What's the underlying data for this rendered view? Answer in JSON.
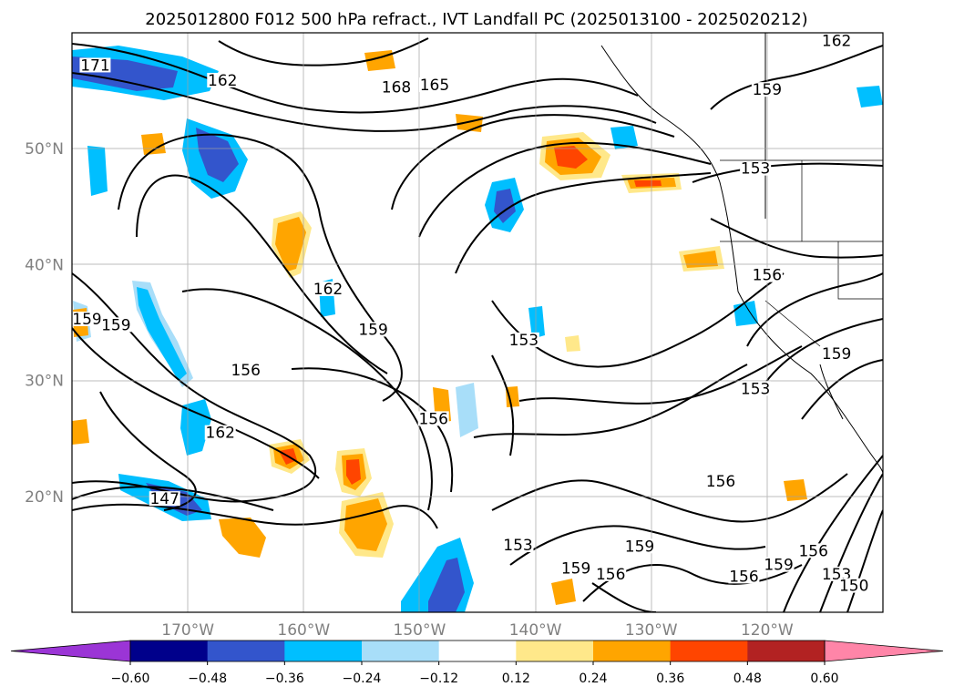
{
  "title": "2025012800 F012 500 hPa refract., IVT Landfall PC (2025013100 - 2025020212)",
  "map": {
    "lat_labels": [
      "50°N",
      "40°N",
      "30°N",
      "20°N"
    ],
    "lon_labels": [
      "170°W",
      "160°W",
      "150°W",
      "140°W",
      "130°W",
      "120°W"
    ],
    "lat_values": [
      50,
      40,
      30,
      20
    ],
    "lon_values": [
      -170,
      -160,
      -150,
      -140,
      -130,
      -120
    ],
    "extent": {
      "lon_min": -180,
      "lon_max": -110,
      "lat_min": 10,
      "lat_max": 60
    },
    "gridlines": true,
    "contour_labels": [
      {
        "text": "171",
        "lon": -178.0,
        "lat": 56.9
      },
      {
        "text": "162",
        "lon": -167.0,
        "lat": 55.6
      },
      {
        "text": "168",
        "lon": -152.0,
        "lat": 55.0
      },
      {
        "text": "165",
        "lon": -148.7,
        "lat": 55.2
      },
      {
        "text": "162",
        "lon": -114.0,
        "lat": 59.0
      },
      {
        "text": "159",
        "lon": -120.0,
        "lat": 54.8
      },
      {
        "text": "153",
        "lon": -121.0,
        "lat": 48.0
      },
      {
        "text": "156",
        "lon": -120.0,
        "lat": 38.8
      },
      {
        "text": "162",
        "lon": -157.9,
        "lat": 37.6
      },
      {
        "text": "159",
        "lon": -178.7,
        "lat": 35.0
      },
      {
        "text": "159",
        "lon": -176.2,
        "lat": 34.5
      },
      {
        "text": "159",
        "lon": -154.0,
        "lat": 34.1
      },
      {
        "text": "153",
        "lon": -141.0,
        "lat": 33.2
      },
      {
        "text": "156",
        "lon": -165.0,
        "lat": 30.6
      },
      {
        "text": "159",
        "lon": -114.0,
        "lat": 32.0
      },
      {
        "text": "153",
        "lon": -121.0,
        "lat": 29.0
      },
      {
        "text": "156",
        "lon": -148.8,
        "lat": 26.4
      },
      {
        "text": "162",
        "lon": -167.2,
        "lat": 25.2
      },
      {
        "text": "156",
        "lon": -124.0,
        "lat": 21.0
      },
      {
        "text": "147",
        "lon": -172.0,
        "lat": 19.5
      },
      {
        "text": "153",
        "lon": -141.5,
        "lat": 15.5
      },
      {
        "text": "159",
        "lon": -131.0,
        "lat": 15.4
      },
      {
        "text": "159",
        "lon": -136.5,
        "lat": 13.5
      },
      {
        "text": "156",
        "lon": -133.5,
        "lat": 13.0
      },
      {
        "text": "156",
        "lon": -122.0,
        "lat": 12.8
      },
      {
        "text": "159",
        "lon": -119.0,
        "lat": 13.8
      },
      {
        "text": "156",
        "lon": -116.0,
        "lat": 15.0
      },
      {
        "text": "153",
        "lon": -114.0,
        "lat": 13.0
      },
      {
        "text": "150",
        "lon": -112.5,
        "lat": 12.0
      }
    ]
  },
  "colorbar": {
    "ticks": [
      "−0.60",
      "−0.48",
      "−0.36",
      "−0.24",
      "−0.12",
      "0.12",
      "0.24",
      "0.36",
      "0.48",
      "0.60"
    ],
    "colors": [
      "#9b35d6",
      "#00008b",
      "#3355cc",
      "#00bfff",
      "#a8def9",
      "#ffffff",
      "#ffe88a",
      "#ffa500",
      "#ff4500",
      "#b22222",
      "#ff85a8"
    ]
  }
}
